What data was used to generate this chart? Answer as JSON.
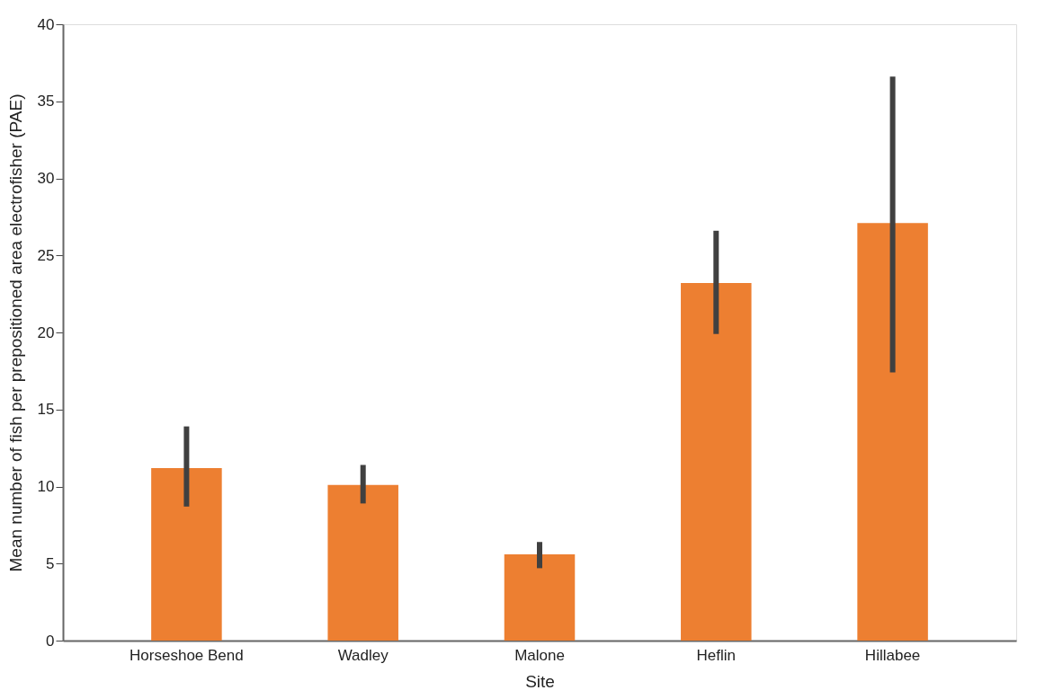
{
  "chart_data": {
    "type": "bar",
    "xlabel": "Site",
    "ylabel": "Mean number of fish per prepositioned area electrofisher (PAE)",
    "categories": [
      "Horseshoe Bend",
      "Wadley",
      "Malone",
      "Heflin",
      "Hillabee"
    ],
    "values": [
      11.2,
      10.1,
      5.6,
      23.2,
      27.1
    ],
    "errors": [
      [
        8.7,
        13.9
      ],
      [
        8.9,
        11.4
      ],
      [
        4.7,
        6.4
      ],
      [
        19.9,
        26.6
      ],
      [
        17.4,
        36.6
      ]
    ],
    "color": "#ed7f31",
    "ylim": [
      0,
      40
    ],
    "yticks": [
      0,
      5,
      10,
      15,
      20,
      25,
      30,
      35,
      40
    ],
    "grid": false
  }
}
